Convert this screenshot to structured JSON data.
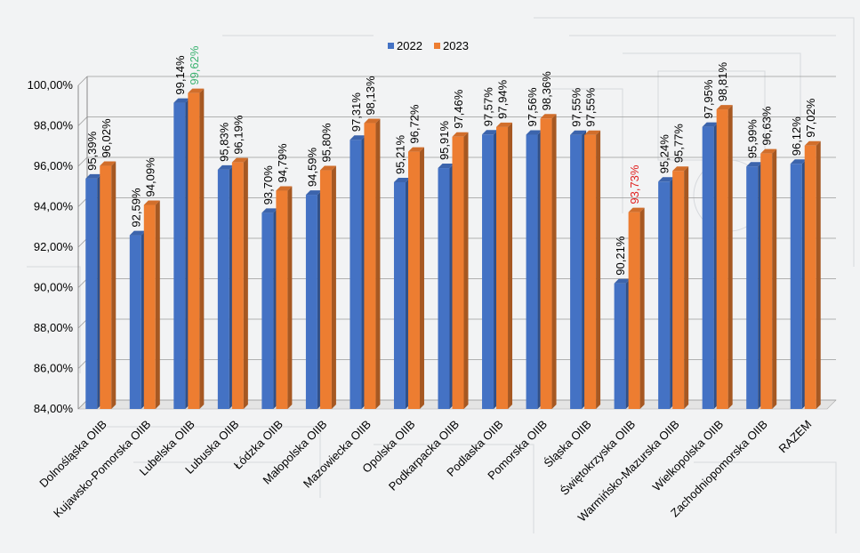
{
  "chart_data": {
    "type": "bar",
    "categories": [
      "Dolnośląska OIIB",
      "Kujawsko-Pomorska OIIB",
      "Lubelska OIIB",
      "Lubuska OIIB",
      "Łódzka OIIB",
      "Małopolska OIIB",
      "Mazowiecka OIIB",
      "Opolska OIIB",
      "Podkarpacka OIIB",
      "Podlaska OIIB",
      "Pomorska OIIB",
      "Śląska OIIB",
      "Świętokrzyska OIIB",
      "Warmińsko-Mazurska OIIB",
      "Wielkopolska OIIB",
      "Zachodniopomorska OIIB",
      "RAZEM"
    ],
    "series": [
      {
        "name": "2022",
        "color": "#4472c4",
        "values": [
          95.39,
          92.59,
          99.14,
          95.83,
          93.7,
          94.59,
          97.31,
          95.21,
          95.91,
          97.57,
          97.56,
          97.55,
          90.21,
          95.24,
          97.95,
          95.99,
          96.12
        ],
        "labels": [
          "95,39%",
          "92,59%",
          "99,14%",
          "95,83%",
          "93,70%",
          "94,59%",
          "97,31%",
          "95,21%",
          "95,91%",
          "97,57%",
          "97,56%",
          "97,55%",
          "90,21%",
          "95,24%",
          "97,95%",
          "95,99%",
          "96,12%"
        ]
      },
      {
        "name": "2023",
        "color": "#ed7d31",
        "values": [
          96.02,
          94.09,
          99.62,
          96.19,
          94.79,
          95.8,
          98.13,
          96.72,
          97.46,
          97.94,
          98.36,
          97.55,
          93.73,
          95.77,
          98.81,
          96.63,
          97.02
        ],
        "labels": [
          "96,02%",
          "94,09%",
          "99,62%",
          "96,19%",
          "94,79%",
          "95,80%",
          "98,13%",
          "96,72%",
          "97,46%",
          "97,94%",
          "98,36%",
          "97,55%",
          "93,73%",
          "95,77%",
          "98,81%",
          "96,63%",
          "97,02%"
        ]
      }
    ],
    "highlights": [
      {
        "series": 1,
        "index": 2,
        "color": "#3cb371"
      },
      {
        "series": 1,
        "index": 12,
        "color": "#e0201f"
      }
    ],
    "y_ticks": [
      84,
      86,
      88,
      90,
      92,
      94,
      96,
      98,
      100
    ],
    "y_tick_labels": [
      "84,00%",
      "86,00%",
      "88,00%",
      "90,00%",
      "92,00%",
      "94,00%",
      "96,00%",
      "98,00%",
      "100,00%"
    ],
    "ylim": [
      84,
      100
    ],
    "title": "",
    "xlabel": "",
    "ylabel": "",
    "grid": true,
    "legend_position": "top"
  }
}
